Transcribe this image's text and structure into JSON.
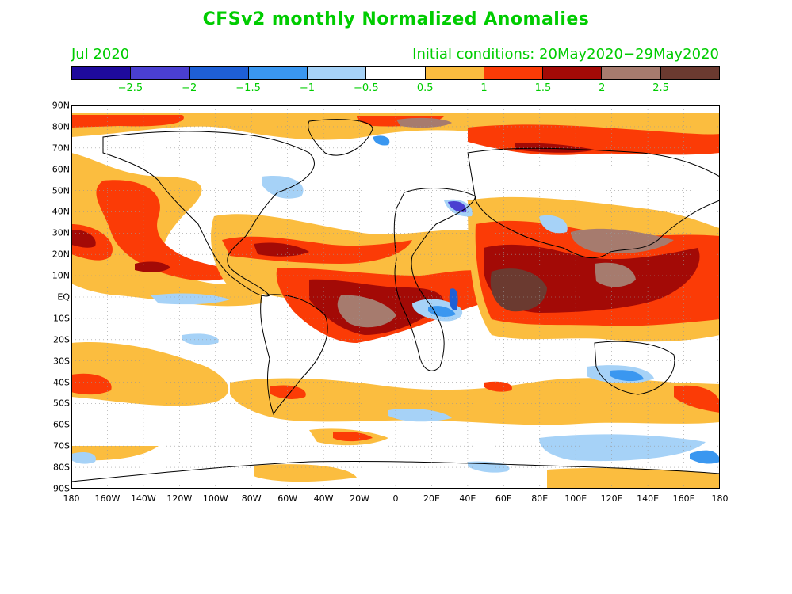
{
  "title": "CFSv2 monthly Normalized Anomalies",
  "period": "Jul 2020",
  "initial_conditions": "Initial conditions: 20May2020−29May2020",
  "colorbar": {
    "colors": [
      "#1e0a9c",
      "#4a3fd1",
      "#1e5fd6",
      "#3a97f0",
      "#a6d2f7",
      "#ffffff",
      "#fbbd3f",
      "#fb3b06",
      "#a30a06",
      "#a67b6e",
      "#6b3a30"
    ],
    "labels": [
      "−2.5",
      "−2",
      "−1.5",
      "−1",
      "−0.5",
      "0.5",
      "1",
      "1.5",
      "2",
      "2.5"
    ]
  },
  "latitude_labels": [
    "90N",
    "80N",
    "70N",
    "60N",
    "50N",
    "40N",
    "30N",
    "20N",
    "10N",
    "EQ",
    "10S",
    "20S",
    "30S",
    "40S",
    "50S",
    "60S",
    "70S",
    "80S",
    "90S"
  ],
  "longitude_labels": [
    "180",
    "160W",
    "140W",
    "120W",
    "100W",
    "80W",
    "60W",
    "40W",
    "20W",
    "0",
    "20E",
    "40E",
    "60E",
    "80E",
    "100E",
    "120E",
    "140E",
    "160E",
    "180"
  ]
}
